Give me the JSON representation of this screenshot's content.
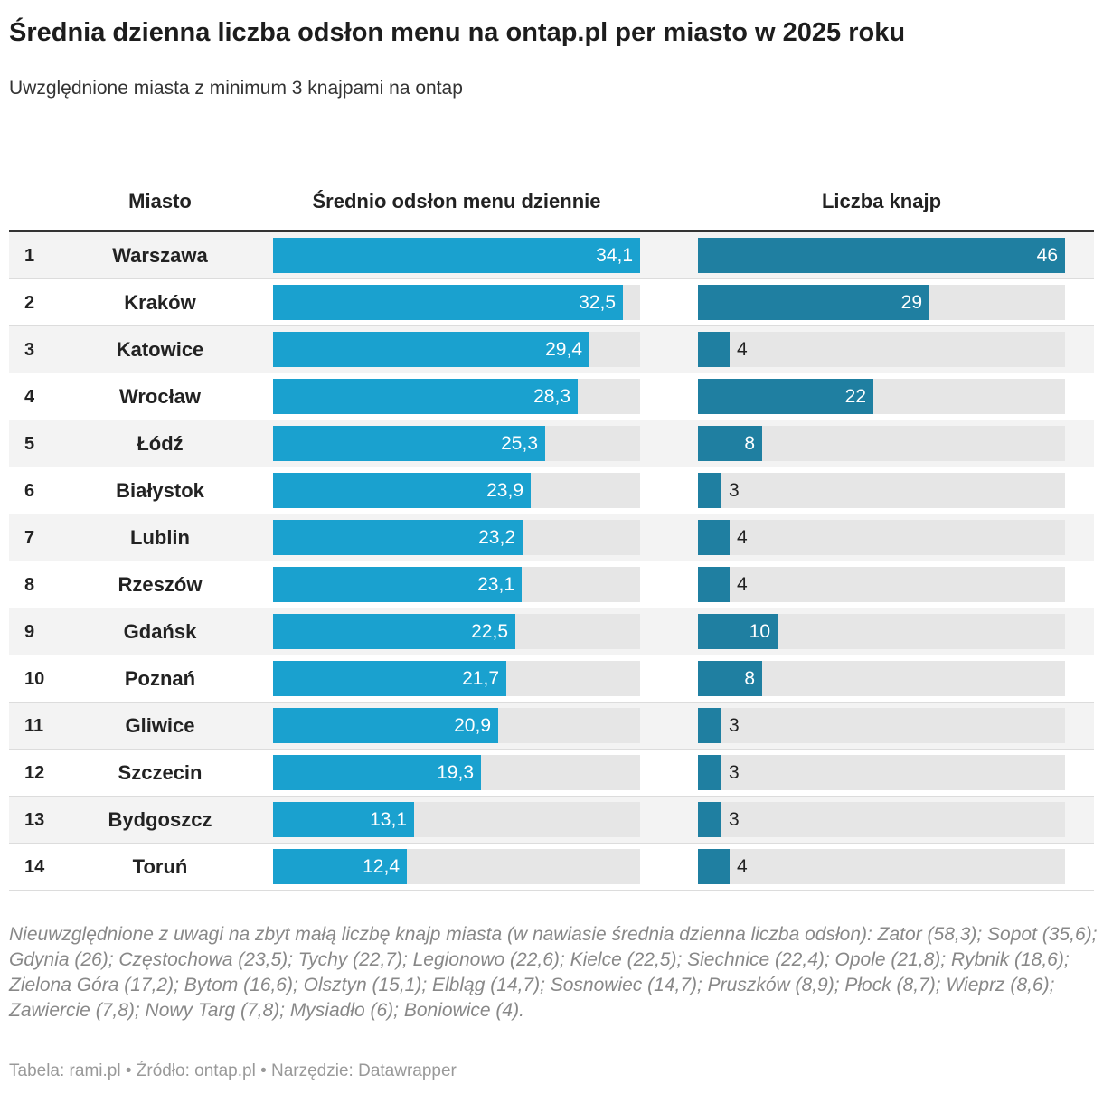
{
  "title": "Średnia dzienna liczba odsłon menu na ontap.pl per miasto w 2025 roku",
  "subtitle": "Uwzględnione miasta z minimum 3 knajpami na ontap",
  "columns": {
    "city": "Miasto",
    "views": "Średnio odsłon menu dziennie",
    "pubs": "Liczba knajp"
  },
  "colors": {
    "views_bar": "#1aa1cf",
    "pubs_bar": "#1f7fa1",
    "track": "#e6e6e6"
  },
  "chart_data": {
    "type": "table",
    "title": "Średnia dzienna liczba odsłon menu na ontap.pl per miasto w 2025 roku",
    "series_ranges": {
      "views": [
        0,
        34.1
      ],
      "pubs": [
        0,
        46
      ]
    },
    "rows": [
      {
        "rank": "1",
        "city": "Warszawa",
        "views": 34.1,
        "views_label": "34,1",
        "pubs": 46,
        "pubs_label": "46"
      },
      {
        "rank": "2",
        "city": "Kraków",
        "views": 32.5,
        "views_label": "32,5",
        "pubs": 29,
        "pubs_label": "29"
      },
      {
        "rank": "3",
        "city": "Katowice",
        "views": 29.4,
        "views_label": "29,4",
        "pubs": 4,
        "pubs_label": "4"
      },
      {
        "rank": "4",
        "city": "Wrocław",
        "views": 28.3,
        "views_label": "28,3",
        "pubs": 22,
        "pubs_label": "22"
      },
      {
        "rank": "5",
        "city": "Łódź",
        "views": 25.3,
        "views_label": "25,3",
        "pubs": 8,
        "pubs_label": "8"
      },
      {
        "rank": "6",
        "city": "Białystok",
        "views": 23.9,
        "views_label": "23,9",
        "pubs": 3,
        "pubs_label": "3"
      },
      {
        "rank": "7",
        "city": "Lublin",
        "views": 23.2,
        "views_label": "23,2",
        "pubs": 4,
        "pubs_label": "4"
      },
      {
        "rank": "8",
        "city": "Rzeszów",
        "views": 23.1,
        "views_label": "23,1",
        "pubs": 4,
        "pubs_label": "4"
      },
      {
        "rank": "9",
        "city": "Gdańsk",
        "views": 22.5,
        "views_label": "22,5",
        "pubs": 10,
        "pubs_label": "10"
      },
      {
        "rank": "10",
        "city": "Poznań",
        "views": 21.7,
        "views_label": "21,7",
        "pubs": 8,
        "pubs_label": "8"
      },
      {
        "rank": "11",
        "city": "Gliwice",
        "views": 20.9,
        "views_label": "20,9",
        "pubs": 3,
        "pubs_label": "3"
      },
      {
        "rank": "12",
        "city": "Szczecin",
        "views": 19.3,
        "views_label": "19,3",
        "pubs": 3,
        "pubs_label": "3"
      },
      {
        "rank": "13",
        "city": "Bydgoszcz",
        "views": 13.1,
        "views_label": "13,1",
        "pubs": 3,
        "pubs_label": "3"
      },
      {
        "rank": "14",
        "city": "Toruń",
        "views": 12.4,
        "views_label": "12,4",
        "pubs": 4,
        "pubs_label": "4"
      }
    ]
  },
  "note": "Nieuwzględnione z uwagi na zbyt małą liczbę knajp miasta (w nawiasie średnia dzienna liczba odsłon): Zator (58,3); Sopot (35,6); Gdynia (26); Częstochowa (23,5); Tychy (22,7); Legionowo (22,6); Kielce (22,5); Siechnice (22,4); Opole (21,8); Rybnik (18,6); Zielona Góra (17,2); Bytom (16,6); Olsztyn (15,1); Elbląg (14,7); Sosnowiec (14,7); Pruszków (8,9); Płock (8,7); Wieprz (8,6); Zawiercie (7,8); Nowy Targ (7,8); Mysiadło (6); Boniowice (4).",
  "source": "Tabela: rami.pl • Źródło: ontap.pl • Narzędzie: Datawrapper"
}
